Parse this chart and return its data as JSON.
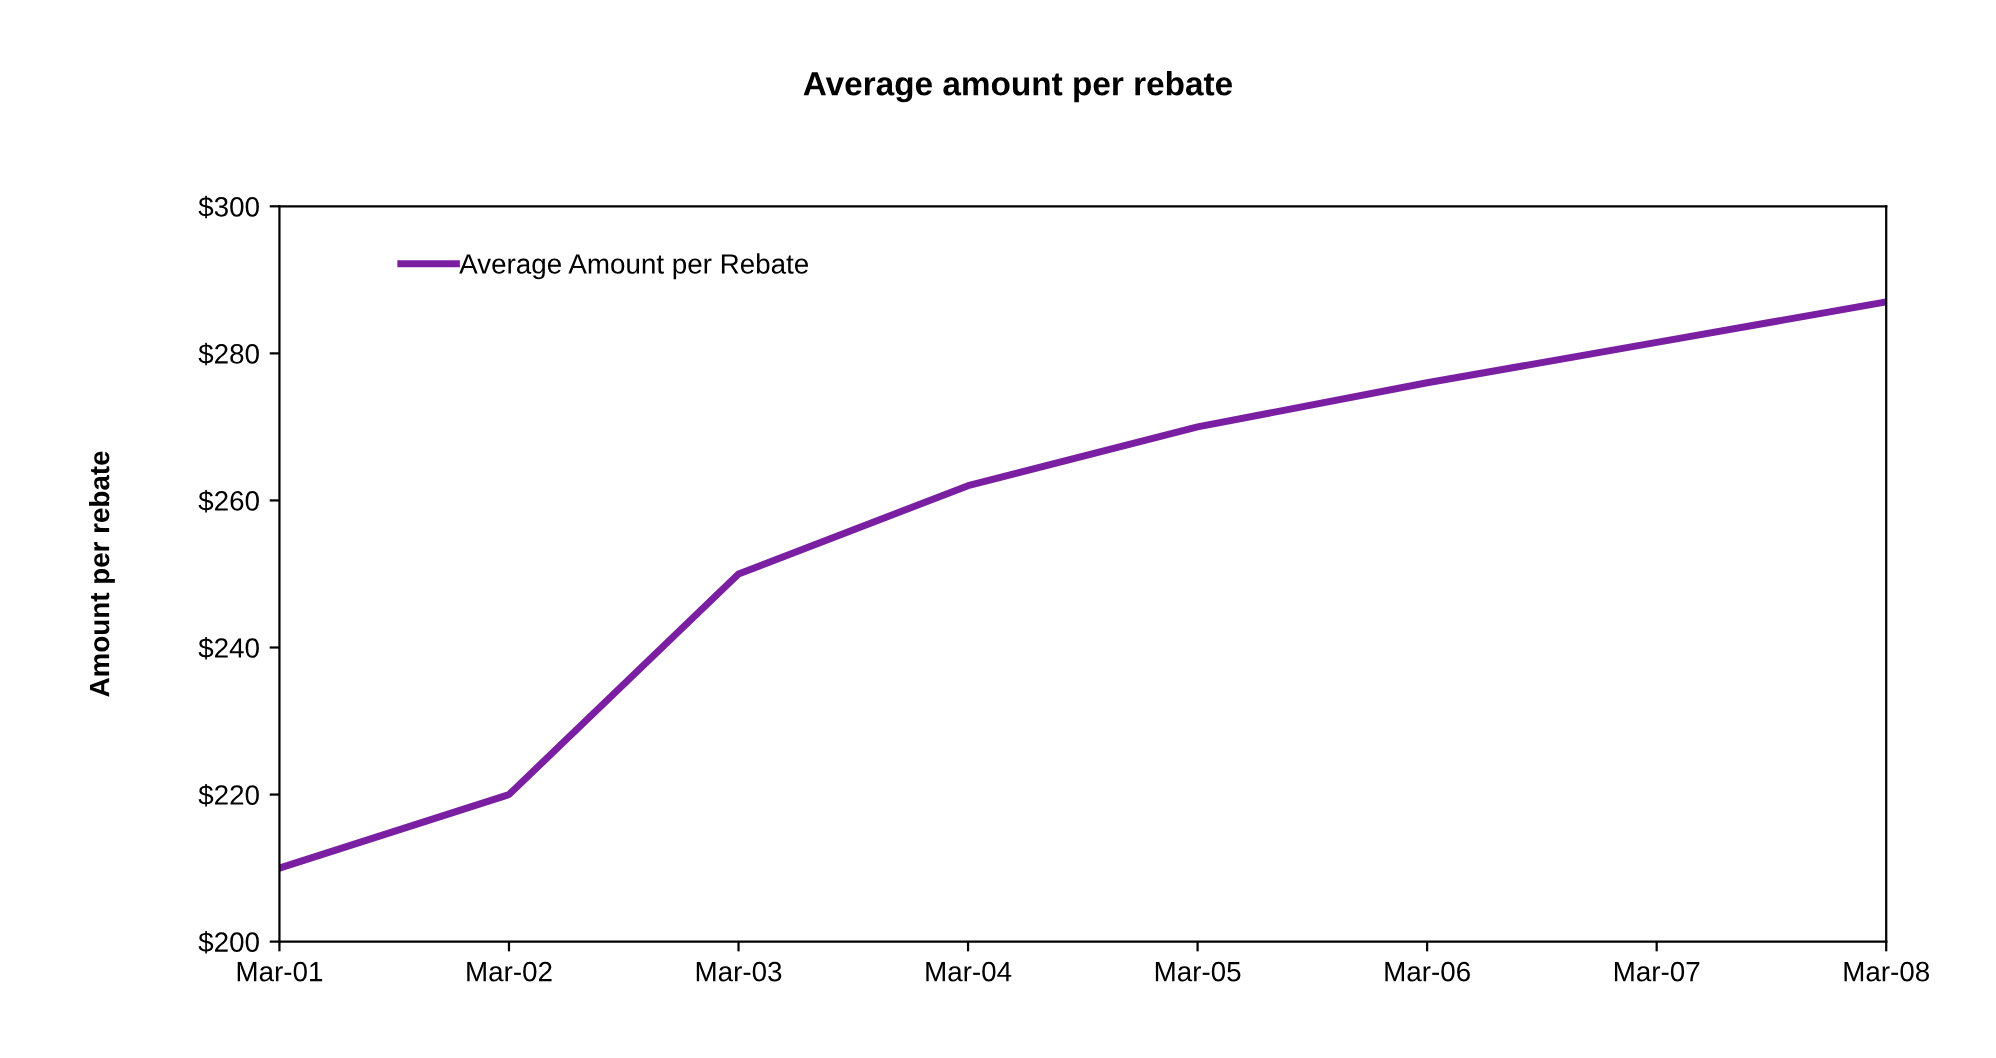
{
  "chart_data": {
    "type": "line",
    "title": "Average amount per rebate",
    "ylabel": "Amount per rebate",
    "categories": [
      "Mar-01",
      "Mar-02",
      "Mar-03",
      "Mar-04",
      "Mar-05",
      "Mar-06",
      "Mar-07",
      "Mar-08"
    ],
    "series": [
      {
        "name": "Average Amount per Rebate",
        "color": "#7b1fa2",
        "values": [
          210,
          220,
          250,
          262,
          270,
          276,
          281.5,
          287
        ]
      }
    ],
    "ylim": [
      200,
      300
    ],
    "yticks": [
      {
        "value": 200,
        "label": "$200"
      },
      {
        "value": 220,
        "label": "$220"
      },
      {
        "value": 240,
        "label": "$240"
      },
      {
        "value": 260,
        "label": "$260"
      },
      {
        "value": 280,
        "label": "$280"
      },
      {
        "value": 300,
        "label": "$300"
      }
    ],
    "grid": false,
    "legend": "top left",
    "marker": "none",
    "line_style": "solid"
  }
}
